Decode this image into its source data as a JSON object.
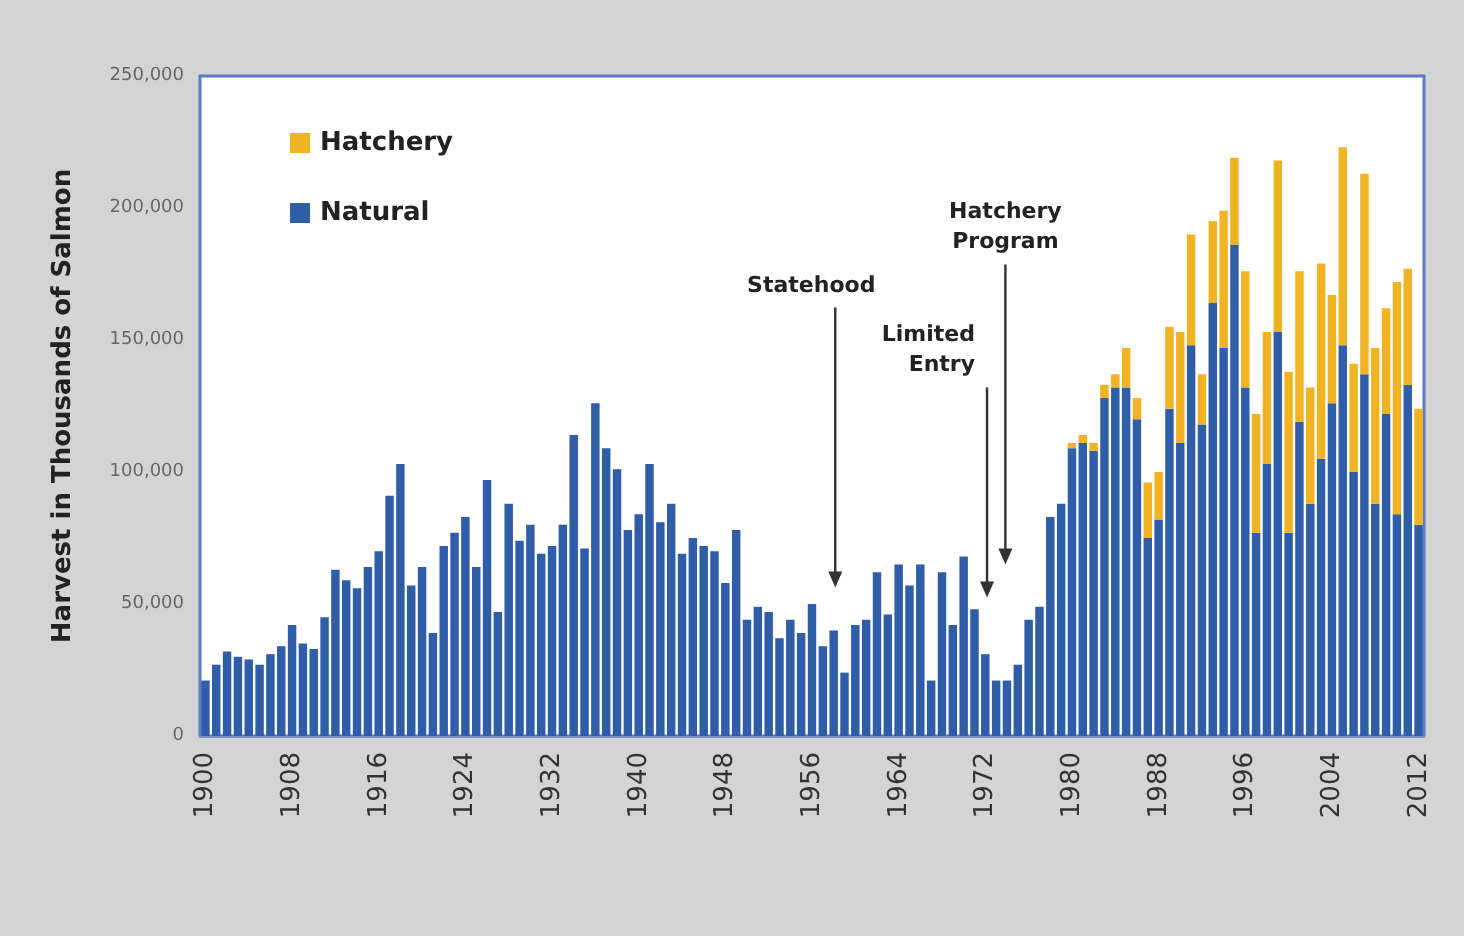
{
  "chart_data": {
    "type": "bar",
    "stacked": true,
    "ylabel": "Harvest in Thousands of Salmon",
    "x": [
      1900,
      1901,
      1902,
      1903,
      1904,
      1905,
      1906,
      1907,
      1908,
      1909,
      1910,
      1911,
      1912,
      1913,
      1914,
      1915,
      1916,
      1917,
      1918,
      1919,
      1920,
      1921,
      1922,
      1923,
      1924,
      1925,
      1926,
      1927,
      1928,
      1929,
      1930,
      1931,
      1932,
      1933,
      1934,
      1935,
      1936,
      1937,
      1938,
      1939,
      1940,
      1941,
      1942,
      1943,
      1944,
      1945,
      1946,
      1947,
      1948,
      1949,
      1950,
      1951,
      1952,
      1953,
      1954,
      1955,
      1956,
      1957,
      1958,
      1959,
      1960,
      1961,
      1962,
      1963,
      1964,
      1965,
      1966,
      1967,
      1968,
      1969,
      1970,
      1971,
      1972,
      1973,
      1974,
      1975,
      1976,
      1977,
      1978,
      1979,
      1980,
      1981,
      1982,
      1983,
      1984,
      1985,
      1986,
      1987,
      1988,
      1989,
      1990,
      1991,
      1992,
      1993,
      1994,
      1995,
      1996,
      1997,
      1998,
      1999,
      2000,
      2001,
      2002,
      2003,
      2004,
      2005,
      2006,
      2007,
      2008,
      2009,
      2010,
      2011,
      2012
    ],
    "series": [
      {
        "name": "Natural",
        "color": "#2f5da8",
        "values": [
          21000,
          27000,
          32000,
          30000,
          29000,
          27000,
          31000,
          34000,
          42000,
          35000,
          33000,
          45000,
          63000,
          59000,
          56000,
          64000,
          70000,
          91000,
          103000,
          57000,
          64000,
          39000,
          72000,
          77000,
          83000,
          64000,
          97000,
          47000,
          88000,
          74000,
          80000,
          69000,
          72000,
          80000,
          114000,
          71000,
          126000,
          109000,
          101000,
          78000,
          84000,
          103000,
          81000,
          88000,
          69000,
          75000,
          72000,
          70000,
          58000,
          78000,
          44000,
          49000,
          47000,
          37000,
          44000,
          39000,
          50000,
          34000,
          40000,
          24000,
          42000,
          44000,
          62000,
          46000,
          65000,
          57000,
          65000,
          21000,
          62000,
          42000,
          68000,
          48000,
          31000,
          21000,
          21000,
          27000,
          44000,
          49000,
          83000,
          88000,
          109000,
          111000,
          108000,
          128000,
          132000,
          132000,
          120000,
          75000,
          82000,
          124000,
          111000,
          148000,
          118000,
          164000,
          147000,
          186000,
          132000,
          77000,
          103000,
          153000,
          77000,
          119000,
          88000,
          105000,
          126000,
          148000,
          100000,
          137000,
          88000,
          122000,
          84000,
          133000,
          80000
        ]
      },
      {
        "name": "Hatchery",
        "color": "#f0b323",
        "values": [
          null,
          null,
          null,
          null,
          null,
          null,
          null,
          null,
          null,
          null,
          null,
          null,
          null,
          null,
          null,
          null,
          null,
          null,
          null,
          null,
          null,
          null,
          null,
          null,
          null,
          null,
          null,
          null,
          null,
          null,
          null,
          null,
          null,
          null,
          null,
          null,
          null,
          null,
          null,
          null,
          null,
          null,
          null,
          null,
          null,
          null,
          null,
          null,
          null,
          null,
          null,
          null,
          null,
          null,
          null,
          null,
          null,
          null,
          null,
          null,
          null,
          null,
          null,
          null,
          null,
          null,
          null,
          null,
          null,
          null,
          null,
          null,
          null,
          null,
          null,
          null,
          null,
          null,
          null,
          null,
          2000,
          3000,
          3000,
          5000,
          5000,
          15000,
          8000,
          21000,
          18000,
          31000,
          42000,
          42000,
          19000,
          31000,
          52000,
          33000,
          44000,
          45000,
          50000,
          65000,
          61000,
          57000,
          44000,
          74000,
          41000,
          75000,
          41000,
          76000,
          59000,
          40000,
          88000,
          44000,
          44000
        ]
      }
    ],
    "xlim": [
      1899.5,
      2012.5
    ],
    "xticks": [
      1900,
      1908,
      1916,
      1924,
      1932,
      1940,
      1948,
      1956,
      1964,
      1972,
      1980,
      1988,
      1996,
      2004,
      2012
    ],
    "ylim": [
      0,
      250000
    ],
    "yticks": [
      0,
      {
        "value": 50000,
        "label": "50,000"
      },
      {
        "value": 100000,
        "label": "100,000"
      },
      {
        "value": 150000,
        "label": "150,000"
      },
      {
        "value": 200000,
        "label": "200,000"
      },
      {
        "value": 250000,
        "label": "250,000"
      }
    ],
    "grid": false,
    "legend": "top left",
    "annotations": [
      "Statehood",
      "Limited\nEntry",
      "Hatchery\nProgram"
    ]
  }
}
